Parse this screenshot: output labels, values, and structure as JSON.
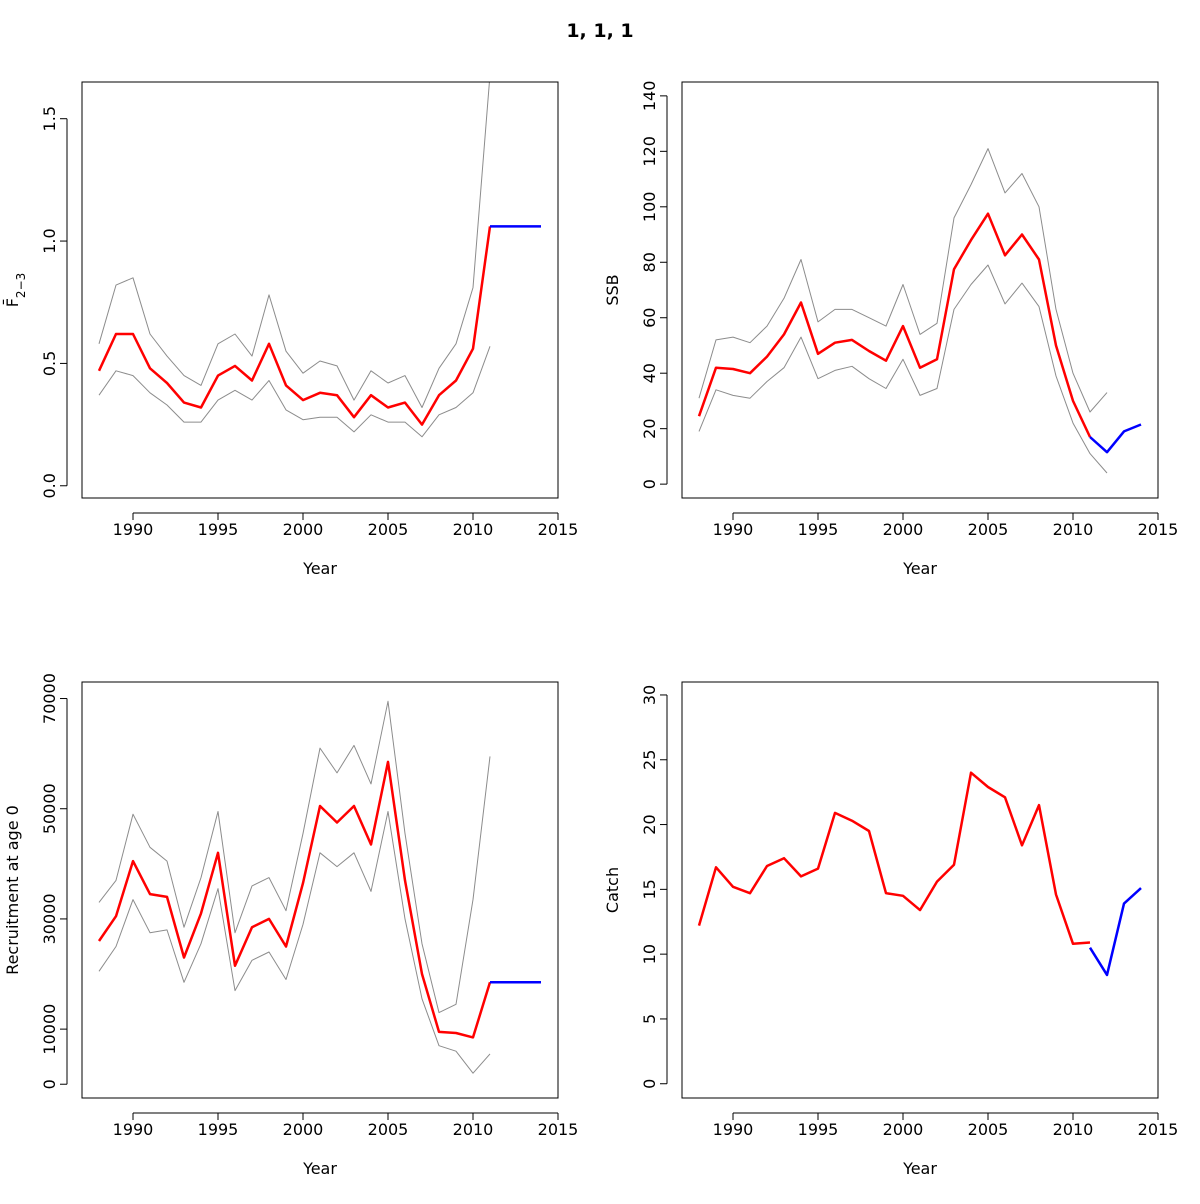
{
  "title": "1, 1, 1",
  "colors": {
    "estimate": "#ff0000",
    "forecast": "#0000ff",
    "ci": "#8c8c8c",
    "axis": "#000000"
  },
  "chart_data": [
    {
      "type": "line",
      "xlabel": "Year",
      "ylabel": "F̄",
      "ylabel_sub": "2−3",
      "xlim": [
        1987,
        2015
      ],
      "ylim": [
        -0.05,
        1.65
      ],
      "xticks": [
        1990,
        1995,
        2000,
        2005,
        2010,
        2015
      ],
      "yticks": [
        0.0,
        0.5,
        1.0,
        1.5
      ],
      "ytick_labels": [
        "0.0",
        "0.5",
        "1.0",
        "1.5"
      ],
      "series": [
        {
          "role": "estimate",
          "x": [
            1988,
            1989,
            1990,
            1991,
            1992,
            1993,
            1994,
            1995,
            1996,
            1997,
            1998,
            1999,
            2000,
            2001,
            2002,
            2003,
            2004,
            2005,
            2006,
            2007,
            2008,
            2009,
            2010,
            2011
          ],
          "y": [
            0.47,
            0.62,
            0.62,
            0.48,
            0.42,
            0.34,
            0.32,
            0.45,
            0.49,
            0.43,
            0.58,
            0.41,
            0.35,
            0.38,
            0.37,
            0.28,
            0.37,
            0.32,
            0.34,
            0.25,
            0.37,
            0.43,
            0.56,
            1.06
          ]
        },
        {
          "role": "ci-upper",
          "x": [
            1988,
            1989,
            1990,
            1991,
            1992,
            1993,
            1994,
            1995,
            1996,
            1997,
            1998,
            1999,
            2000,
            2001,
            2002,
            2003,
            2004,
            2005,
            2006,
            2007,
            2008,
            2009,
            2010,
            2011
          ],
          "y": [
            0.58,
            0.82,
            0.85,
            0.62,
            0.53,
            0.45,
            0.41,
            0.58,
            0.62,
            0.53,
            0.78,
            0.55,
            0.46,
            0.51,
            0.49,
            0.35,
            0.47,
            0.42,
            0.45,
            0.32,
            0.48,
            0.58,
            0.81,
            1.68
          ]
        },
        {
          "role": "ci-lower",
          "x": [
            1988,
            1989,
            1990,
            1991,
            1992,
            1993,
            1994,
            1995,
            1996,
            1997,
            1998,
            1999,
            2000,
            2001,
            2002,
            2003,
            2004,
            2005,
            2006,
            2007,
            2008,
            2009,
            2010,
            2011
          ],
          "y": [
            0.37,
            0.47,
            0.45,
            0.38,
            0.33,
            0.26,
            0.26,
            0.35,
            0.39,
            0.35,
            0.43,
            0.31,
            0.27,
            0.28,
            0.28,
            0.22,
            0.29,
            0.26,
            0.26,
            0.2,
            0.29,
            0.32,
            0.38,
            0.57
          ]
        },
        {
          "role": "forecast",
          "x": [
            2011,
            2012,
            2013,
            2014
          ],
          "y": [
            1.06,
            1.06,
            1.06,
            1.06
          ]
        }
      ]
    },
    {
      "type": "line",
      "xlabel": "Year",
      "ylabel": "SSB",
      "xlim": [
        1987,
        2015
      ],
      "ylim": [
        -5,
        145
      ],
      "xticks": [
        1990,
        1995,
        2000,
        2005,
        2010,
        2015
      ],
      "yticks": [
        0,
        20,
        40,
        60,
        80,
        100,
        120,
        140
      ],
      "ytick_labels": [
        "0",
        "20",
        "40",
        "60",
        "80",
        "100",
        "120",
        "140"
      ],
      "series": [
        {
          "role": "estimate",
          "x": [
            1988,
            1989,
            1990,
            1991,
            1992,
            1993,
            1994,
            1995,
            1996,
            1997,
            1998,
            1999,
            2000,
            2001,
            2002,
            2003,
            2004,
            2005,
            2006,
            2007,
            2008,
            2009,
            2010,
            2011
          ],
          "y": [
            24.5,
            42,
            41.5,
            40,
            46,
            54,
            65.5,
            47,
            51,
            52,
            48,
            44.5,
            57,
            42,
            45,
            77.5,
            88,
            97.5,
            82.5,
            90,
            81,
            50,
            30,
            17
          ]
        },
        {
          "role": "ci-upper",
          "x": [
            1988,
            1989,
            1990,
            1991,
            1992,
            1993,
            1994,
            1995,
            1996,
            1997,
            1998,
            1999,
            2000,
            2001,
            2002,
            2003,
            2004,
            2005,
            2006,
            2007,
            2008,
            2009,
            2010,
            2011,
            2012
          ],
          "y": [
            31,
            52,
            53,
            51,
            57,
            67,
            81,
            58.5,
            63,
            63,
            60,
            57,
            72,
            54,
            58,
            96,
            108,
            121,
            105,
            112,
            100,
            63,
            40,
            26,
            33
          ]
        },
        {
          "role": "ci-lower",
          "x": [
            1988,
            1989,
            1990,
            1991,
            1992,
            1993,
            1994,
            1995,
            1996,
            1997,
            1998,
            1999,
            2000,
            2001,
            2002,
            2003,
            2004,
            2005,
            2006,
            2007,
            2008,
            2009,
            2010,
            2011,
            2012
          ],
          "y": [
            19,
            34,
            32,
            31,
            37,
            42,
            53,
            38,
            41,
            42.5,
            38,
            34.5,
            45,
            32,
            34.5,
            63,
            72,
            79,
            65,
            72.5,
            64,
            39,
            22,
            11,
            4
          ]
        },
        {
          "role": "forecast",
          "x": [
            2011,
            2012,
            2013,
            2014
          ],
          "y": [
            17,
            11.5,
            19,
            21.5
          ]
        }
      ]
    },
    {
      "type": "line",
      "xlabel": "Year",
      "ylabel": "Recruitment at age 0",
      "xlim": [
        1987,
        2015
      ],
      "ylim": [
        -2500,
        73000
      ],
      "xticks": [
        1990,
        1995,
        2000,
        2005,
        2010,
        2015
      ],
      "yticks": [
        0,
        10000,
        30000,
        50000,
        70000
      ],
      "ytick_labels": [
        "0",
        "10000",
        "30000",
        "50000",
        "70000"
      ],
      "series": [
        {
          "role": "estimate",
          "x": [
            1988,
            1989,
            1990,
            1991,
            1992,
            1993,
            1994,
            1995,
            1996,
            1997,
            1998,
            1999,
            2000,
            2001,
            2002,
            2003,
            2004,
            2005,
            2006,
            2007,
            2008,
            2009,
            2010,
            2011
          ],
          "y": [
            26000,
            30500,
            40500,
            34500,
            34000,
            23000,
            31000,
            42000,
            21500,
            28500,
            30000,
            25000,
            36500,
            50500,
            47500,
            50500,
            43500,
            58500,
            37000,
            20000,
            9500,
            9300,
            8500,
            18500
          ]
        },
        {
          "role": "ci-upper",
          "x": [
            1988,
            1989,
            1990,
            1991,
            1992,
            1993,
            1994,
            1995,
            1996,
            1997,
            1998,
            1999,
            2000,
            2001,
            2002,
            2003,
            2004,
            2005,
            2006,
            2007,
            2008,
            2009,
            2010,
            2011
          ],
          "y": [
            33000,
            37000,
            49000,
            43000,
            40500,
            28500,
            37500,
            49500,
            27500,
            36000,
            37500,
            31500,
            45500,
            61000,
            56500,
            61500,
            54500,
            69500,
            45500,
            25500,
            13000,
            14500,
            33500,
            59500
          ]
        },
        {
          "role": "ci-lower",
          "x": [
            1988,
            1989,
            1990,
            1991,
            1992,
            1993,
            1994,
            1995,
            1996,
            1997,
            1998,
            1999,
            2000,
            2001,
            2002,
            2003,
            2004,
            2005,
            2006,
            2007,
            2008,
            2009,
            2010,
            2011
          ],
          "y": [
            20500,
            25000,
            33500,
            27500,
            28000,
            18500,
            25500,
            35500,
            17000,
            22500,
            24000,
            19000,
            29000,
            42000,
            39500,
            42000,
            35000,
            49500,
            30000,
            15500,
            7000,
            6000,
            2000,
            5500
          ]
        },
        {
          "role": "forecast",
          "x": [
            2011,
            2012,
            2013,
            2014
          ],
          "y": [
            18500,
            18500,
            18500,
            18500
          ]
        }
      ]
    },
    {
      "type": "line",
      "xlabel": "Year",
      "ylabel": "Catch",
      "xlim": [
        1987,
        2015
      ],
      "ylim": [
        -1.1,
        31
      ],
      "xticks": [
        1990,
        1995,
        2000,
        2005,
        2010,
        2015
      ],
      "yticks": [
        0,
        5,
        10,
        15,
        20,
        25,
        30
      ],
      "ytick_labels": [
        "0",
        "5",
        "10",
        "15",
        "20",
        "25",
        "30"
      ],
      "series": [
        {
          "role": "estimate",
          "x": [
            1988,
            1989,
            1990,
            1991,
            1992,
            1993,
            1994,
            1995,
            1996,
            1997,
            1998,
            1999,
            2000,
            2001,
            2002,
            2003,
            2004,
            2005,
            2006,
            2007,
            2008,
            2009,
            2010,
            2011
          ],
          "y": [
            12.2,
            16.7,
            15.2,
            14.7,
            16.8,
            17.4,
            16,
            16.6,
            20.9,
            20.3,
            19.5,
            14.7,
            14.5,
            13.4,
            15.6,
            16.9,
            24,
            22.9,
            22.1,
            18.4,
            21.5,
            14.6,
            10.8,
            10.9
          ]
        },
        {
          "role": "forecast",
          "x": [
            2011,
            2012,
            2013,
            2014
          ],
          "y": [
            10.5,
            8.4,
            13.9,
            15.1
          ]
        }
      ]
    }
  ]
}
